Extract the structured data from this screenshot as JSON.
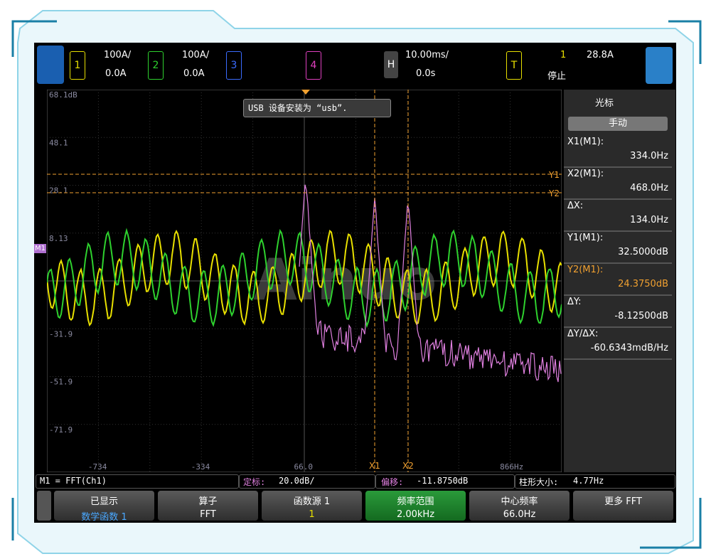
{
  "top_bar": {
    "ch1": {
      "label": "1",
      "scale": "100A/",
      "offset": "0.0A"
    },
    "ch2": {
      "label": "2",
      "scale": "100A/",
      "offset": "0.0A"
    },
    "ch3": {
      "label": "3"
    },
    "ch4": {
      "label": "4"
    },
    "horizontal": {
      "label": "H",
      "scale": "10.00ms/",
      "delay": "0.0s"
    },
    "trigger": {
      "label": "T",
      "source": "1",
      "level": "28.8A",
      "status": "停止"
    }
  },
  "plot": {
    "y_labels": [
      "68.1dB",
      "48.1",
      "28.1",
      "8.13",
      "-31.9",
      "-51.9",
      "-71.9"
    ],
    "x_labels": [
      "-734",
      "-334",
      "66.0",
      "866Hz"
    ],
    "notification": "USB 设备安装为 “usb”.",
    "cursors": {
      "y1": "Y1",
      "y2": "Y2",
      "x1": "X1",
      "x2": "X2"
    },
    "marker": "M1",
    "watermark": "Ainuo"
  },
  "side_panel": {
    "title": "光标",
    "mode": "手动",
    "readouts": [
      {
        "label": "X1(M1):",
        "value": "334.0Hz"
      },
      {
        "label": "X2(M1):",
        "value": "468.0Hz"
      },
      {
        "label": "ΔX:",
        "value": "134.0Hz"
      },
      {
        "label": "Y1(M1):",
        "value": "32.5000dB"
      },
      {
        "label": "Y2(M1):",
        "value": "24.3750dB"
      },
      {
        "label": "ΔY:",
        "value": "-8.12500dB"
      },
      {
        "label": "ΔY/ΔX:",
        "value": "-60.6343mdB/Hz"
      }
    ]
  },
  "status_bar": {
    "math": "M1 = FFT(Ch1)",
    "scale_label": "定标:",
    "scale": "20.0dB/",
    "offset_label": "偏移:",
    "offset": "-11.8750dB",
    "bin_label": "柱形大小:",
    "bin": "4.77Hz"
  },
  "softkeys": [
    {
      "label": "已显示",
      "value": "数学函数 1"
    },
    {
      "label": "算子",
      "value": "FFT"
    },
    {
      "label": "函数源 1",
      "value": "1"
    },
    {
      "label": "频率范围",
      "value": "2.00kHz"
    },
    {
      "label": "中心频率",
      "value": "66.0Hz"
    },
    {
      "label": "更多 FFT"
    }
  ]
}
